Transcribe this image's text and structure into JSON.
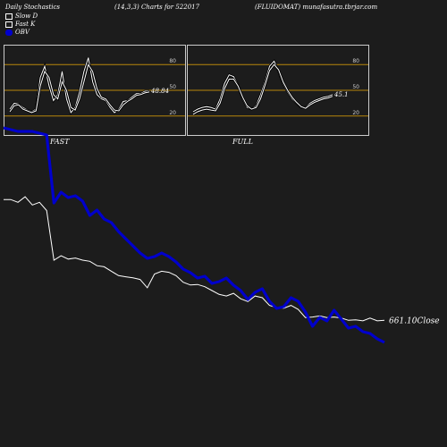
{
  "header": {
    "left": "Daily Stochastics",
    "center": "(14,3,3) Charts for 522017",
    "right": "(FLUIDOMAT) munafasutra.tbrjar.com"
  },
  "legend": {
    "slow_d": "Slow  D",
    "fast_k": "Fast K",
    "obv": "OBV"
  },
  "chart_data": [
    {
      "type": "line",
      "panel": "FAST",
      "ylim": [
        0,
        100
      ],
      "ytick_labels": [
        "80",
        "50",
        "20"
      ],
      "reference_lines": [
        80,
        50,
        20
      ],
      "last_value_label": "48.84",
      "series": [
        {
          "values": [
            28,
            35,
            34,
            30,
            27,
            25,
            28,
            65,
            78,
            55,
            38,
            45,
            72,
            40,
            24,
            30,
            48,
            72,
            88,
            60,
            45,
            40,
            38,
            30,
            24,
            28,
            37,
            38,
            42,
            46,
            46,
            49,
            49
          ]
        },
        {
          "values": [
            25,
            32,
            33,
            28,
            26,
            24,
            26,
            55,
            72,
            65,
            45,
            40,
            60,
            50,
            30,
            27,
            40,
            60,
            80,
            72,
            52,
            42,
            40,
            33,
            27,
            26,
            33,
            37,
            40,
            44,
            45,
            47,
            48
          ]
        }
      ]
    },
    {
      "type": "line",
      "panel": "FULL",
      "ylim": [
        0,
        100
      ],
      "ytick_labels": [
        "80",
        "50",
        "20"
      ],
      "reference_lines": [
        80,
        50,
        20
      ],
      "last_value_label": "45.1",
      "series": [
        {
          "values": [
            25,
            28,
            30,
            31,
            30,
            28,
            40,
            58,
            68,
            66,
            56,
            40,
            30,
            28,
            32,
            45,
            60,
            78,
            84,
            72,
            58,
            48,
            40,
            35,
            30,
            30,
            35,
            38,
            40,
            42,
            43,
            45
          ]
        },
        {
          "values": [
            22,
            25,
            27,
            28,
            27,
            26,
            35,
            52,
            63,
            63,
            55,
            42,
            32,
            28,
            30,
            40,
            56,
            73,
            80,
            74,
            60,
            50,
            42,
            36,
            31,
            29,
            33,
            36,
            38,
            40,
            41,
            43
          ]
        }
      ]
    },
    {
      "type": "line",
      "panel": "price_obv",
      "last_price_label": "661.10Close",
      "series": [
        {
          "name": "Close",
          "values": [
            880,
            880,
            875,
            885,
            870,
            875,
            860,
            770,
            778,
            772,
            774,
            770,
            768,
            760,
            758,
            750,
            742,
            740,
            738,
            735,
            720,
            745,
            750,
            748,
            742,
            730,
            725,
            726,
            722,
            715,
            708,
            705,
            710,
            700,
            695,
            705,
            702,
            688,
            684,
            683,
            688,
            681,
            666,
            667,
            669,
            666,
            667,
            665,
            661,
            662,
            660,
            665,
            660,
            661
          ]
        },
        {
          "name": "OBV",
          "values": [
            100,
            99,
            98,
            98,
            98,
            97,
            96,
            58,
            64,
            61,
            62,
            59,
            51,
            54,
            49,
            47,
            42,
            38,
            34,
            30,
            27,
            28,
            30,
            28,
            25,
            21,
            19,
            16,
            17,
            13,
            14,
            16,
            12,
            9,
            4,
            8,
            10,
            3,
            -1,
            0,
            5,
            3,
            -3,
            -11,
            -6,
            -8,
            -2,
            -7,
            -12,
            -11,
            -14,
            -15,
            -18,
            -20
          ]
        }
      ]
    }
  ]
}
